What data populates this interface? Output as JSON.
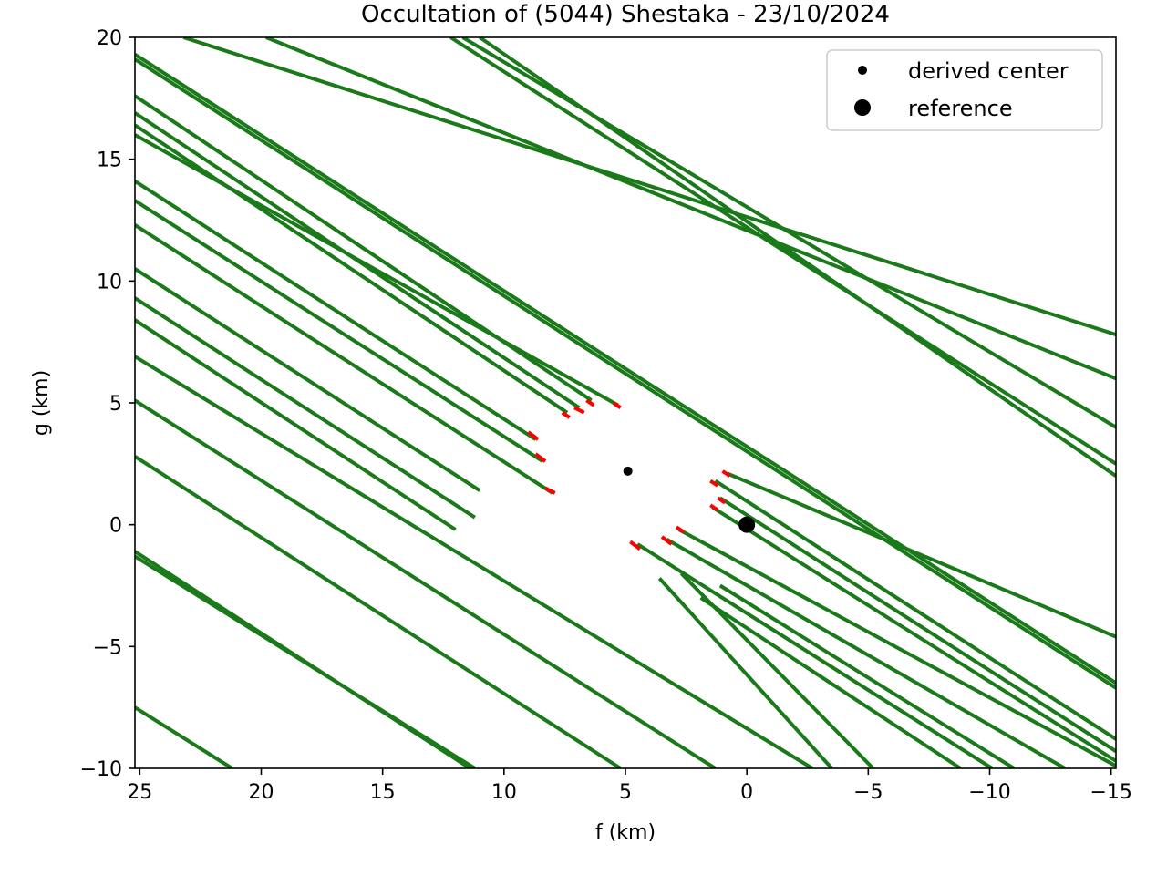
{
  "chart_data": {
    "type": "line",
    "title": "Occultation of (5044) Shestaka - 23/10/2024",
    "xlabel": "f (km)",
    "ylabel": "g (km)",
    "xlim": [
      25.2,
      -15.2
    ],
    "ylim": [
      -10,
      20
    ],
    "x_inverted": true,
    "grid": false,
    "x_ticks": [
      25,
      20,
      15,
      10,
      5,
      0,
      -5,
      -10,
      -15
    ],
    "x_tick_labels": [
      "25",
      "20",
      "15",
      "10",
      "5",
      "0",
      "−5",
      "−10",
      "−15"
    ],
    "y_ticks": [
      20,
      15,
      10,
      5,
      0,
      -5,
      -10
    ],
    "y_tick_labels": [
      "20",
      "15",
      "10",
      "5",
      "0",
      "−5",
      "−10"
    ],
    "colors": {
      "chord": "#1a7a1a",
      "chord_error": "#ff0000",
      "marker": "#000000"
    },
    "full_chords": [
      {
        "x": [
          23.2,
          -15.2
        ],
        "y": [
          20,
          7.8
        ]
      },
      {
        "x": [
          19.8,
          -15.2
        ],
        "y": [
          20,
          6.0
        ]
      },
      {
        "x": [
          11.7,
          -15.2
        ],
        "y": [
          20,
          4.0
        ]
      },
      {
        "x": [
          12.2,
          -15.2
        ],
        "y": [
          20,
          2.5
        ]
      },
      {
        "x": [
          11.0,
          -15.2
        ],
        "y": [
          20,
          2.0
        ]
      },
      {
        "x": [
          25.2,
          -15.2
        ],
        "y": [
          19.3,
          -6.5
        ]
      },
      {
        "x": [
          25.2,
          -15.2
        ],
        "y": [
          19.1,
          -6.7
        ]
      },
      {
        "x": [
          25.2,
          21.2
        ],
        "y": [
          -7.5,
          -10
        ]
      },
      {
        "x": [
          25.2,
          11.4
        ],
        "y": [
          -1.1,
          -10
        ]
      },
      {
        "x": [
          25.2,
          11.2
        ],
        "y": [
          -1.3,
          -10
        ]
      },
      {
        "x": [
          25.2,
          5.2
        ],
        "y": [
          2.8,
          -10
        ]
      },
      {
        "x": [
          25.2,
          1.3
        ],
        "y": [
          5.1,
          -10
        ]
      },
      {
        "x": [
          25.2,
          -2.7
        ],
        "y": [
          6.9,
          -10
        ]
      }
    ],
    "partial_chords": [
      {
        "x": [
          25.2,
          6.4
        ],
        "y": [
          17.6,
          5.1
        ]
      },
      {
        "x": [
          25.2,
          6.9
        ],
        "y": [
          16.9,
          4.8
        ]
      },
      {
        "x": [
          25.2,
          7.4
        ],
        "y": [
          16.4,
          4.6
        ]
      },
      {
        "x": [
          25.2,
          5.3
        ],
        "y": [
          16.0,
          4.9
        ]
      },
      {
        "x": [
          25.2,
          8.7
        ],
        "y": [
          14.1,
          3.5
        ]
      },
      {
        "x": [
          25.2,
          8.4
        ],
        "y": [
          13.3,
          2.6
        ]
      },
      {
        "x": [
          25.2,
          8.0
        ],
        "y": [
          12.3,
          1.3
        ]
      },
      {
        "x": [
          25.2,
          11.0
        ],
        "y": [
          10.5,
          1.4
        ]
      },
      {
        "x": [
          25.2,
          11.2
        ],
        "y": [
          9.3,
          0.3
        ]
      },
      {
        "x": [
          25.2,
          12.0
        ],
        "y": [
          8.4,
          -0.2
        ]
      },
      {
        "x": [
          0.8,
          -15.2
        ],
        "y": [
          2.1,
          -4.6
        ]
      },
      {
        "x": [
          1.3,
          -15.2
        ],
        "y": [
          1.8,
          -8.8
        ]
      },
      {
        "x": [
          1.1,
          -15.2
        ],
        "y": [
          1.1,
          -9.3
        ]
      },
      {
        "x": [
          1.4,
          -15.2
        ],
        "y": [
          0.7,
          -9.7
        ]
      },
      {
        "x": [
          2.8,
          -15.2
        ],
        "y": [
          -0.2,
          -9.9
        ]
      },
      {
        "x": [
          3.3,
          -13.1
        ],
        "y": [
          -0.6,
          -10
        ]
      },
      {
        "x": [
          4.5,
          -10.1
        ],
        "y": [
          -0.8,
          -10
        ]
      },
      {
        "x": [
          2.7,
          -5.2
        ],
        "y": [
          -2.0,
          -10
        ]
      },
      {
        "x": [
          3.6,
          -3.5
        ],
        "y": [
          -2.2,
          -10
        ]
      },
      {
        "x": [
          1.9,
          -8.8
        ],
        "y": [
          -3.0,
          -10
        ]
      },
      {
        "x": [
          1.1,
          -11.0
        ],
        "y": [
          -2.5,
          -10
        ]
      }
    ],
    "error_segments": [
      {
        "x": [
          6.6,
          6.3
        ],
        "y": [
          5.1,
          4.9
        ]
      },
      {
        "x": [
          7.1,
          6.7
        ],
        "y": [
          4.8,
          4.6
        ]
      },
      {
        "x": [
          7.6,
          7.3
        ],
        "y": [
          4.6,
          4.4
        ]
      },
      {
        "x": [
          5.5,
          5.2
        ],
        "y": [
          5.0,
          4.8
        ]
      },
      {
        "x": [
          9.0,
          8.6
        ],
        "y": [
          3.8,
          3.5
        ]
      },
      {
        "x": [
          8.7,
          8.3
        ],
        "y": [
          2.9,
          2.6
        ]
      },
      {
        "x": [
          8.3,
          7.9
        ],
        "y": [
          1.5,
          1.3
        ]
      },
      {
        "x": [
          1.0,
          0.7
        ],
        "y": [
          2.2,
          2.0
        ]
      },
      {
        "x": [
          1.5,
          1.2
        ],
        "y": [
          1.8,
          1.6
        ]
      },
      {
        "x": [
          1.2,
          0.9
        ],
        "y": [
          1.1,
          0.9
        ]
      },
      {
        "x": [
          1.5,
          1.2
        ],
        "y": [
          0.8,
          0.6
        ]
      },
      {
        "x": [
          2.9,
          2.6
        ],
        "y": [
          -0.1,
          -0.3
        ]
      },
      {
        "x": [
          3.5,
          3.1
        ],
        "y": [
          -0.5,
          -0.8
        ]
      },
      {
        "x": [
          4.8,
          4.4
        ],
        "y": [
          -0.7,
          -1.0
        ]
      }
    ],
    "points": [
      {
        "name": "derived center",
        "x": 4.9,
        "y": 2.2,
        "size": "small"
      },
      {
        "name": "reference",
        "x": 0.0,
        "y": 0.0,
        "size": "large"
      }
    ],
    "legend": {
      "position": "top-right",
      "entries": [
        "derived center",
        "reference"
      ]
    }
  }
}
